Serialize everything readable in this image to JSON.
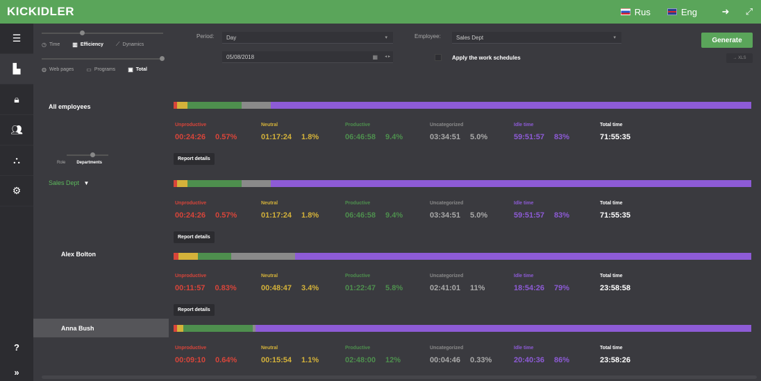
{
  "app": {
    "logo": "KICKIDLER"
  },
  "topbar": {
    "lang_ru": "Rus",
    "lang_en": "Eng"
  },
  "sidebar": {
    "items": [
      "list-icon",
      "chart-icon",
      "lock-icon",
      "users-icon",
      "hierarchy-icon",
      "gears-icon"
    ],
    "help": "?",
    "expand": "»"
  },
  "modes": {
    "row1": [
      "Time",
      "Efficiency",
      "Dynamics"
    ],
    "row1_selected": "Efficiency",
    "row2": [
      "Web pages",
      "Programs",
      "Total"
    ],
    "row2_selected": "Total"
  },
  "filters": {
    "period_label": "Period:",
    "period_value": "Day",
    "date_value": "05/08/2018",
    "employee_label": "Employee:",
    "employee_value": "Sales Dept",
    "schedule_label": "Apply the work schedules",
    "generate": "Generate",
    "xls": "→ XLS"
  },
  "grouping": {
    "options": [
      "Role",
      "Departments"
    ],
    "selected": "Departments"
  },
  "group_name": "Sales Dept",
  "colors": {
    "unproductive": "#d8453a",
    "neutral": "#d4b23a",
    "productive": "#4e8f4e",
    "uncategorized": "#8a8a8a",
    "idle": "#8d5bd6",
    "total": "#ffffff"
  },
  "headers": {
    "unproductive": "Unproductive",
    "neutral": "Neutral",
    "productive": "Productive",
    "uncategorized": "Uncategorized",
    "idle": "Idle time",
    "total": "Total time"
  },
  "report_label": "Report details",
  "rows": [
    {
      "name": "All employees",
      "unproductive": {
        "time": "00:24:26",
        "pct": "0.57%"
      },
      "neutral": {
        "time": "01:17:24",
        "pct": "1.8%"
      },
      "productive": {
        "time": "06:46:58",
        "pct": "9.4%"
      },
      "uncategorized": {
        "time": "03:34:51",
        "pct": "5.0%"
      },
      "idle": {
        "time": "59:51:57",
        "pct": "83%"
      },
      "total": "71:55:35",
      "shares": [
        0.57,
        1.8,
        9.4,
        5.0,
        83
      ]
    },
    {
      "name": "Sales Dept",
      "unproductive": {
        "time": "00:24:26",
        "pct": "0.57%"
      },
      "neutral": {
        "time": "01:17:24",
        "pct": "1.8%"
      },
      "productive": {
        "time": "06:46:58",
        "pct": "9.4%"
      },
      "uncategorized": {
        "time": "03:34:51",
        "pct": "5.0%"
      },
      "idle": {
        "time": "59:51:57",
        "pct": "83%"
      },
      "total": "71:55:35",
      "shares": [
        0.57,
        1.8,
        9.4,
        5.0,
        83
      ]
    },
    {
      "name": "Alex Bolton",
      "unproductive": {
        "time": "00:11:57",
        "pct": "0.83%"
      },
      "neutral": {
        "time": "00:48:47",
        "pct": "3.4%"
      },
      "productive": {
        "time": "01:22:47",
        "pct": "5.8%"
      },
      "uncategorized": {
        "time": "02:41:01",
        "pct": "11%"
      },
      "idle": {
        "time": "18:54:26",
        "pct": "79%"
      },
      "total": "23:58:58",
      "shares": [
        0.83,
        3.4,
        5.8,
        11,
        79
      ]
    },
    {
      "name": "Anna Bush",
      "unproductive": {
        "time": "00:09:10",
        "pct": "0.64%"
      },
      "neutral": {
        "time": "00:15:54",
        "pct": "1.1%"
      },
      "productive": {
        "time": "02:48:00",
        "pct": "12%"
      },
      "uncategorized": {
        "time": "00:04:46",
        "pct": "0.33%"
      },
      "idle": {
        "time": "20:40:36",
        "pct": "86%"
      },
      "total": "23:58:26",
      "shares": [
        0.64,
        1.1,
        12,
        0.33,
        86
      ]
    }
  ]
}
